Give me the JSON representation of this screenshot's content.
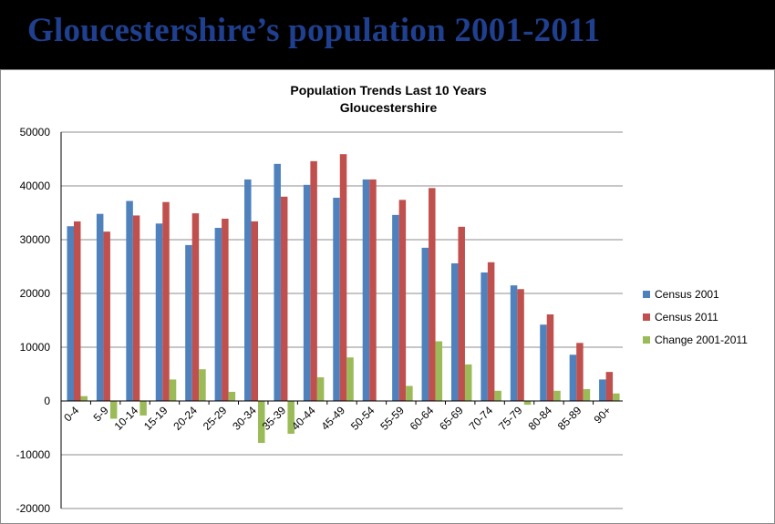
{
  "slide": {
    "title": "Gloucestershire’s population 2001-2011"
  },
  "colors": {
    "census2001": "#4f81bd",
    "census2011": "#c0504d",
    "change": "#9bbb59",
    "gridline": "#8c8c8c"
  },
  "chart_data": {
    "type": "bar",
    "title": "Population Trends Last 10 Years",
    "subtitle": "Gloucestershire",
    "categories": [
      "0-4",
      "5-9",
      "10-14",
      "15-19",
      "20-24",
      "25-29",
      "30-34",
      "35-39",
      "40-44",
      "45-49",
      "50-54",
      "55-59",
      "60-64",
      "65-69",
      "70-74",
      "75-79",
      "80-84",
      "85-89",
      "90+"
    ],
    "series": [
      {
        "name": "Census 2001",
        "values": [
          32500,
          34800,
          37200,
          33000,
          29000,
          32200,
          41200,
          44100,
          40200,
          37800,
          41200,
          34600,
          28500,
          25600,
          23900,
          21500,
          14200,
          8600,
          4000
        ]
      },
      {
        "name": "Census 2011",
        "values": [
          33400,
          31500,
          34500,
          37000,
          34900,
          33900,
          33400,
          38000,
          44600,
          45900,
          41200,
          37400,
          39600,
          32400,
          25800,
          20800,
          16100,
          10800,
          5400
        ]
      },
      {
        "name": "Change 2001-2011",
        "values": [
          900,
          -3300,
          -2700,
          4000,
          5900,
          1700,
          -7800,
          -6100,
          4400,
          8100,
          0,
          2800,
          11100,
          6800,
          1900,
          -700,
          1900,
          2200,
          1400
        ]
      }
    ],
    "xlabel": "",
    "ylabel": "",
    "ylim": [
      -20000,
      50000
    ],
    "yticks": [
      50000,
      40000,
      30000,
      20000,
      10000,
      0,
      -10000,
      -20000
    ],
    "grid": true,
    "legend": "right"
  }
}
